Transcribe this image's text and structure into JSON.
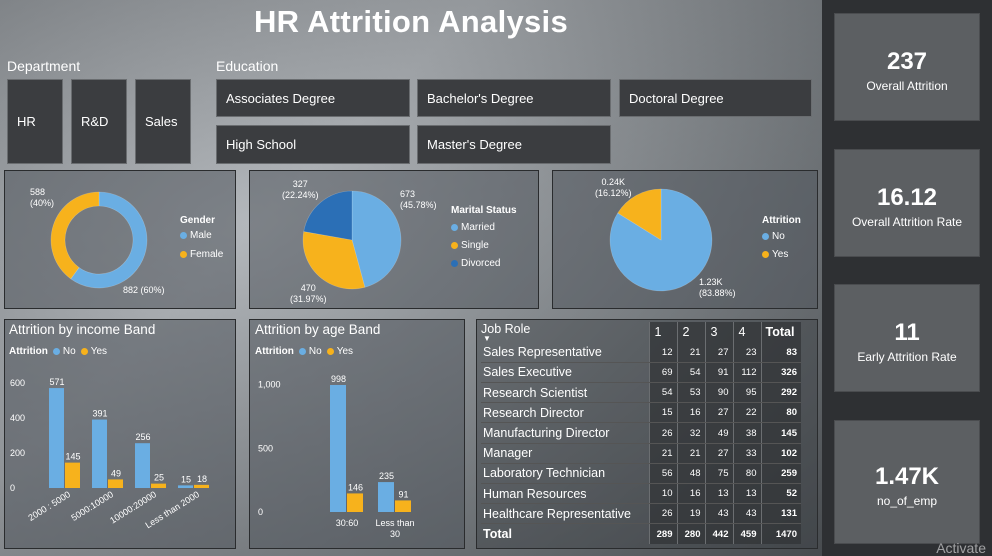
{
  "title": "HR Attrition Analysis",
  "slicers": {
    "department": {
      "label": "Department",
      "options": [
        "HR",
        "R&D",
        "Sales"
      ]
    },
    "education": {
      "label": "Education",
      "options": [
        "Associates Degree",
        "Bachelor's Degree",
        "Doctoral Degree",
        "High School",
        "Master's Degree"
      ]
    }
  },
  "colors": {
    "no": "#6aaee3",
    "yes": "#f7b21c",
    "divorced": "#2b6fb6"
  },
  "kpis": [
    {
      "value": "237",
      "label": "Overall Attrition"
    },
    {
      "value": "16.12",
      "label": "Overall Attrition Rate"
    },
    {
      "value": "11",
      "label": "Early Attrition Rate"
    },
    {
      "value": "1.47K",
      "label": "no_of_emp"
    }
  ],
  "watermark": "Activate",
  "chart_data": [
    {
      "type": "pie",
      "donut": true,
      "legend_title": "Gender",
      "slices": [
        {
          "name": "Male",
          "value": 882,
          "label": "882 (60%)"
        },
        {
          "name": "Female",
          "value": 588,
          "label": "588\n(40%)"
        }
      ]
    },
    {
      "type": "pie",
      "legend_title": "Marital Status",
      "slices": [
        {
          "name": "Married",
          "value": 673,
          "label": "673\n(45.78%)"
        },
        {
          "name": "Single",
          "value": 470,
          "label": "470\n(31.97%)"
        },
        {
          "name": "Divorced",
          "value": 327,
          "label": "327\n(22.24%)"
        }
      ]
    },
    {
      "type": "pie",
      "legend_title": "Attrition",
      "slices": [
        {
          "name": "No",
          "value": 1233,
          "label": "1.23K\n(83.88%)"
        },
        {
          "name": "Yes",
          "value": 237,
          "label": "0.24K\n(16.12%)"
        }
      ]
    },
    {
      "type": "bar",
      "title": "Attrition by income Band",
      "legend_title": "Attrition",
      "categories": [
        "2000 : 5000",
        "5000:10000",
        "10000:20000",
        "Less than 2000"
      ],
      "series": [
        {
          "name": "No",
          "values": [
            571,
            391,
            256,
            15
          ]
        },
        {
          "name": "Yes",
          "values": [
            145,
            49,
            25,
            18
          ]
        }
      ],
      "yticks": [
        "0",
        "200",
        "400",
        "600"
      ],
      "ylim": [
        0,
        640
      ]
    },
    {
      "type": "bar",
      "title": "Attrition by age Band",
      "legend_title": "Attrition",
      "categories": [
        "30:60",
        "Less than 30"
      ],
      "series": [
        {
          "name": "No",
          "values": [
            998,
            235
          ]
        },
        {
          "name": "Yes",
          "values": [
            146,
            91
          ]
        }
      ],
      "yticks": [
        "0",
        "500",
        "1,000"
      ],
      "ylim": [
        0,
        1100
      ]
    },
    {
      "type": "table",
      "header": [
        "Job Role",
        "1",
        "2",
        "3",
        "4",
        "Total"
      ],
      "rows": [
        [
          "Sales Representative",
          "12",
          "21",
          "27",
          "23",
          "83"
        ],
        [
          "Sales Executive",
          "69",
          "54",
          "91",
          "112",
          "326"
        ],
        [
          "Research Scientist",
          "54",
          "53",
          "90",
          "95",
          "292"
        ],
        [
          "Research Director",
          "15",
          "16",
          "27",
          "22",
          "80"
        ],
        [
          "Manufacturing Director",
          "26",
          "32",
          "49",
          "38",
          "145"
        ],
        [
          "Manager",
          "21",
          "21",
          "27",
          "33",
          "102"
        ],
        [
          "Laboratory Technician",
          "56",
          "48",
          "75",
          "80",
          "259"
        ],
        [
          "Human Resources",
          "10",
          "16",
          "13",
          "13",
          "52"
        ],
        [
          "Healthcare Representative",
          "26",
          "19",
          "43",
          "43",
          "131"
        ],
        [
          "Total",
          "289",
          "280",
          "442",
          "459",
          "1470"
        ]
      ]
    }
  ]
}
